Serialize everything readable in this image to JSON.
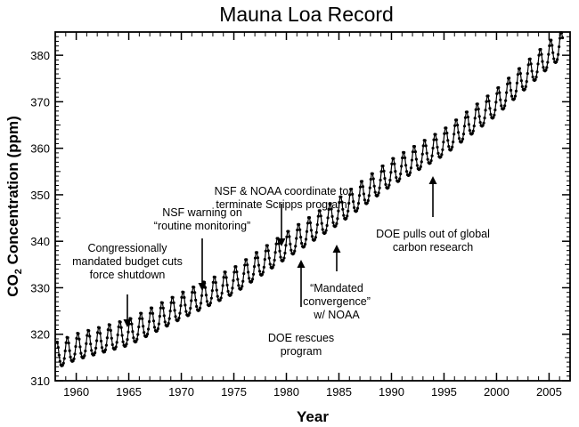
{
  "chart_data": {
    "type": "line",
    "title": "Mauna Loa Record",
    "xlabel": "Year",
    "ylabel_main": "CO",
    "ylabel_sub": "2",
    "ylabel_rest": " Concentration (ppm)",
    "xlim": [
      1958,
      2007
    ],
    "ylim": [
      310,
      385
    ],
    "x_ticks": [
      1960,
      1965,
      1970,
      1975,
      1980,
      1985,
      1990,
      1995,
      2000,
      2005
    ],
    "y_ticks": [
      310,
      320,
      330,
      340,
      350,
      360,
      370,
      380
    ],
    "grid": false,
    "series": [
      {
        "trend_anchor_years": [
          1958.2,
          1960,
          1965,
          1970,
          1975,
          1980,
          1985,
          1990,
          1995,
          2000,
          2005,
          2006.3
        ],
        "trend_anchor_ppm": [
          315.2,
          316.9,
          320.0,
          325.7,
          331.1,
          338.7,
          346.1,
          354.4,
          360.9,
          369.5,
          379.8,
          381.9
        ],
        "seasonal_amplitude_ppm": 3.2,
        "x_start": 1958.2,
        "x_end": 2006.3
      }
    ],
    "annotations": [
      {
        "lines": [
          "Congressionally",
          "mandated budget cuts",
          "force shutdown"
        ],
        "year": 1964,
        "ppm": 321.5
      },
      {
        "lines": [
          "NSF warning on",
          "“routine monitoring”"
        ],
        "year": 1971.5,
        "ppm": 328.5
      },
      {
        "lines": [
          "NSF & NOAA coordinate to",
          "terminate Scripps program"
        ],
        "year": 1979.2,
        "ppm": 338.5
      },
      {
        "lines": [
          "DOE rescues",
          "program"
        ],
        "year": 1980.6,
        "ppm": 336.5
      },
      {
        "lines": [
          "“Mandated",
          "convergence”",
          "w/ NOAA"
        ],
        "year": 1984,
        "ppm": 339.0
      },
      {
        "lines": [
          "DOE pulls out of global",
          "carbon research"
        ],
        "year": 1993.5,
        "ppm": 353.5
      }
    ]
  }
}
